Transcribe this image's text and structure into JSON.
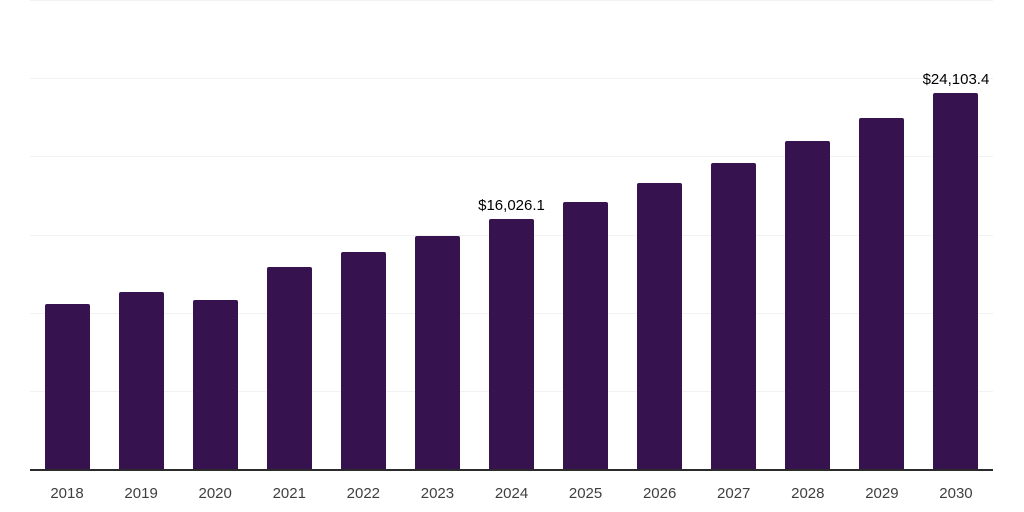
{
  "chart_data": {
    "type": "bar",
    "title": "",
    "xlabel": "",
    "ylabel": "",
    "categories": [
      "2018",
      "2019",
      "2020",
      "2021",
      "2022",
      "2023",
      "2024",
      "2025",
      "2026",
      "2027",
      "2028",
      "2029",
      "2030"
    ],
    "values": [
      10650,
      11400,
      10870,
      13000,
      13970,
      14960,
      16026.1,
      17130,
      18330,
      19650,
      21040,
      22490,
      24103.4
    ],
    "data_labels": [
      {
        "category": "2024",
        "text": "$16,026.1"
      },
      {
        "category": "2030",
        "text": "$24,103.4"
      }
    ],
    "ylim": [
      0,
      30000
    ],
    "gridline_interval": 5000,
    "grid": "horizontal",
    "y_tick_labels_visible": false,
    "legend": "none"
  },
  "style": {
    "bar_color": "#36124E",
    "grid_color": "#F2F2F2",
    "axis_line_color": "#2B2B2B",
    "tick_label_color": "#3F3F3F",
    "data_label_color": "#000000",
    "background_color": "#FFFFFF"
  }
}
